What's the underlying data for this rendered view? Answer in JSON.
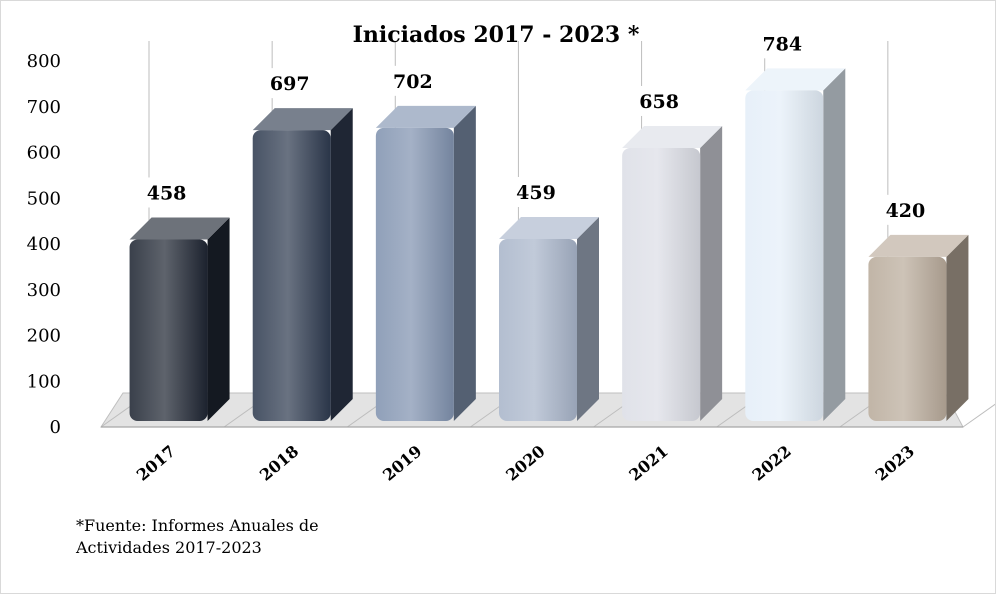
{
  "chart_data": {
    "type": "bar",
    "title": "Iniciados  2017 - 2023 *",
    "categories": [
      "2017",
      "2018",
      "2019",
      "2020",
      "2021",
      "2022",
      "2023"
    ],
    "values": [
      458,
      697,
      702,
      459,
      658,
      784,
      420
    ],
    "data_labels": [
      "458",
      "697",
      "702",
      "459",
      "658",
      "784",
      "420"
    ],
    "yticks": [
      0,
      100,
      200,
      300,
      400,
      500,
      600,
      700,
      800
    ],
    "ylim": [
      0,
      800
    ],
    "colors": [
      "#1f2633",
      "#2f3b50",
      "#8193b0",
      "#a9b5ca",
      "#dcdee6",
      "#e4eef8",
      "#b9ab9b"
    ],
    "legend": "none",
    "grid": "vertical category lines"
  },
  "footnote": {
    "line1": "*Fuente: Informes Anuales de",
    "line2": "Actividades 2017-2023"
  }
}
